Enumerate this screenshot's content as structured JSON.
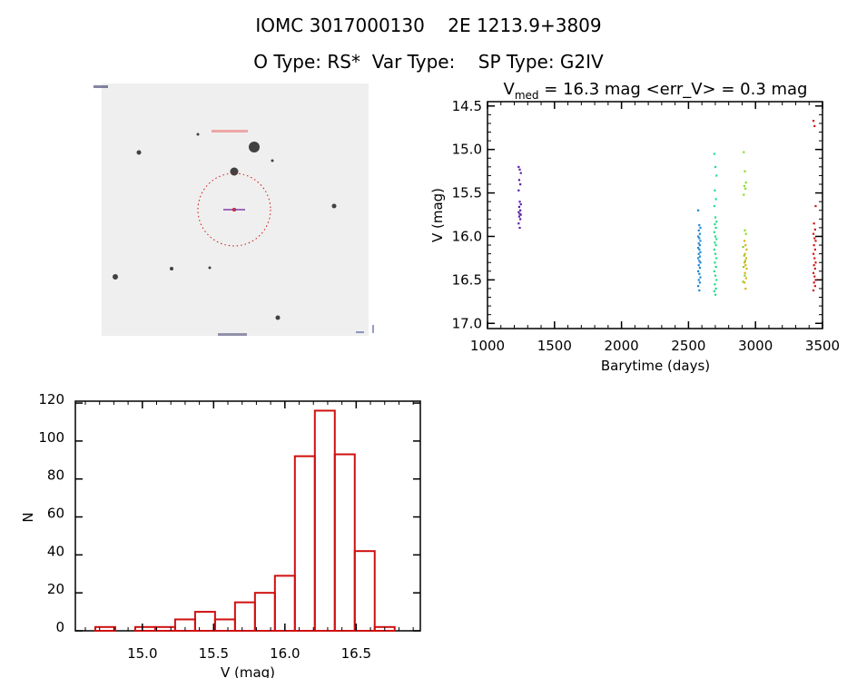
{
  "header": {
    "title_line1": "IOMC 3017000130    2E 1213.9+3809",
    "title_line2": "O Type: RS*  Var Type:    SP Type: G2IV"
  },
  "image_panel": {
    "description_marks": "finding chart",
    "circle_color": "#d01010",
    "marker_color": "#6a1a9a"
  },
  "chart_data": [
    {
      "type": "scatter",
      "title": "V_med = 16.3 mag <err_V> = 0.3 mag",
      "title_parts": {
        "v": "V",
        "sub": "med",
        "rest": " = 16.3 mag <err_V> = 0.3 mag"
      },
      "xlabel": "Barytime (days)",
      "ylabel": "V (mag)",
      "xlim": [
        1000,
        3500
      ],
      "ylim": [
        17.06,
        14.45
      ],
      "y_inverted": true,
      "xticks": [
        "1000",
        "1500",
        "2000",
        "2500",
        "3000",
        "3500"
      ],
      "yticks": [
        "14.5",
        "15.0",
        "15.5",
        "16.0",
        "16.5",
        "17.0"
      ],
      "grid": false,
      "series": [
        {
          "color": "#5a1fa8",
          "x": 1240,
          "y": [
            15.2,
            15.23,
            15.27,
            15.35,
            15.4,
            15.47,
            15.6,
            15.63,
            15.66,
            15.7,
            15.72,
            15.74,
            15.75,
            15.77,
            15.8,
            15.85,
            15.9
          ]
        },
        {
          "color": "#1e88d6",
          "x": 2580,
          "y": [
            15.7,
            15.87,
            15.9,
            15.93,
            15.97,
            16.0,
            16.02,
            16.05,
            16.08,
            16.1,
            16.13,
            16.15,
            16.18,
            16.2,
            16.23,
            16.25,
            16.28,
            16.3,
            16.33,
            16.36,
            16.4,
            16.43,
            16.47,
            16.5,
            16.53,
            16.57,
            16.62
          ]
        },
        {
          "color": "#22dd88",
          "x": 2700,
          "y": [
            15.05,
            15.2,
            15.3,
            15.47,
            15.57,
            15.65,
            15.78,
            15.83,
            15.86,
            15.9,
            15.95,
            16.0,
            16.03,
            16.07,
            16.1,
            16.15,
            16.2,
            16.25,
            16.3,
            16.35,
            16.4,
            16.45,
            16.5,
            16.55,
            16.6,
            16.63,
            16.67
          ]
        },
        {
          "color": "#88dd22",
          "x": 2920,
          "y": [
            15.03,
            15.25,
            15.38,
            15.42,
            15.45,
            15.52,
            15.93,
            15.97
          ]
        },
        {
          "color": "#e0b010",
          "x": 2925,
          "y": [
            16.05,
            16.1,
            16.15,
            16.2,
            16.25,
            16.3,
            16.33,
            16.37,
            16.42,
            16.48,
            16.53,
            16.6
          ]
        },
        {
          "color": "#88cc22",
          "x": 2915,
          "y": [
            16.12,
            16.22,
            16.28,
            16.35,
            16.45,
            16.52
          ]
        },
        {
          "color": "#d01818",
          "x": 3440,
          "y": [
            14.67,
            14.73,
            15.65,
            15.85,
            15.92,
            15.97,
            16.02,
            16.05,
            16.1,
            16.15,
            16.2,
            16.25,
            16.3,
            16.33,
            16.37,
            16.42,
            16.46,
            16.5,
            16.53,
            16.57,
            16.62
          ]
        }
      ]
    },
    {
      "type": "bar",
      "subtype": "histogram",
      "xlabel": "V (mag)",
      "ylabel": "N",
      "xlim": [
        14.53,
        16.95
      ],
      "ylim": [
        0,
        121
      ],
      "xticks": [
        "15.0",
        "15.5",
        "16.0",
        "16.5"
      ],
      "yticks": [
        "0",
        "20",
        "40",
        "60",
        "80",
        "100",
        "120"
      ],
      "bin_centers": [
        14.74,
        14.88,
        15.02,
        15.16,
        15.3,
        15.44,
        15.58,
        15.72,
        15.86,
        16.0,
        16.14,
        16.28,
        16.42,
        16.56,
        16.7
      ],
      "bin_width": 0.14,
      "values": [
        2,
        0,
        2,
        2,
        6,
        10,
        6,
        15,
        20,
        29,
        92,
        116,
        93,
        42,
        2
      ],
      "color": "#d01010",
      "grid": false
    }
  ]
}
